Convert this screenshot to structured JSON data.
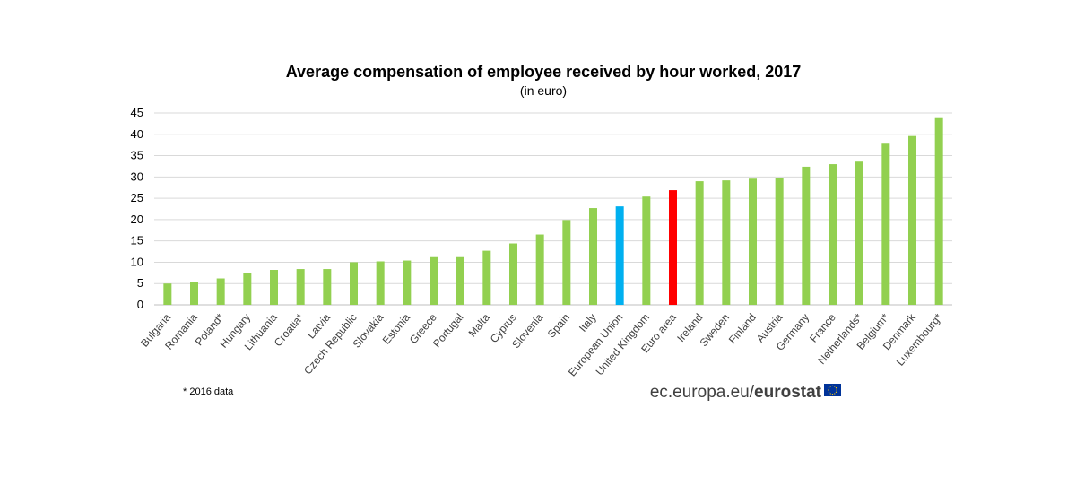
{
  "chart_data": {
    "type": "bar",
    "title": "Average compensation of employee received by hour worked, 2017",
    "subtitle": "(in euro)",
    "categories": [
      "Bulgaria",
      "Romania",
      "Poland*",
      "Hungary",
      "Lithuania",
      "Croatia*",
      "Latvia",
      "Czech Republic",
      "Slovakia",
      "Estonia",
      "Greece",
      "Portugal",
      "Malta",
      "Cyprus",
      "Slovenia",
      "Spain",
      "Italy",
      "European Union",
      "United Kingdom",
      "Euro area",
      "Ireland",
      "Sweden",
      "Finland",
      "Austria",
      "Germany",
      "France",
      "Netherlands*",
      "Belgium*",
      "Denmark",
      "Luxembourg*"
    ],
    "values": [
      5.0,
      5.3,
      6.2,
      7.4,
      8.2,
      8.4,
      8.4,
      10.0,
      10.2,
      10.4,
      11.2,
      11.2,
      12.7,
      14.4,
      16.5,
      19.9,
      22.7,
      23.1,
      25.4,
      26.9,
      29.0,
      29.2,
      29.6,
      29.8,
      32.4,
      33.0,
      33.6,
      37.8,
      39.6,
      43.8
    ],
    "colors": [
      "#92d050",
      "#92d050",
      "#92d050",
      "#92d050",
      "#92d050",
      "#92d050",
      "#92d050",
      "#92d050",
      "#92d050",
      "#92d050",
      "#92d050",
      "#92d050",
      "#92d050",
      "#92d050",
      "#92d050",
      "#92d050",
      "#92d050",
      "#00b0f0",
      "#92d050",
      "#ff0000",
      "#92d050",
      "#92d050",
      "#92d050",
      "#92d050",
      "#92d050",
      "#92d050",
      "#92d050",
      "#92d050",
      "#92d050",
      "#92d050"
    ],
    "yticks": [
      0,
      5,
      10,
      15,
      20,
      25,
      30,
      35,
      40,
      45
    ],
    "ylim": [
      0,
      45
    ],
    "grid": true,
    "legend": "none"
  },
  "footnote": "* 2016 data",
  "source": {
    "prefix": "ec.europa.eu/",
    "brand": "eurostat",
    "flag_icon": "eu-flag-icon"
  }
}
